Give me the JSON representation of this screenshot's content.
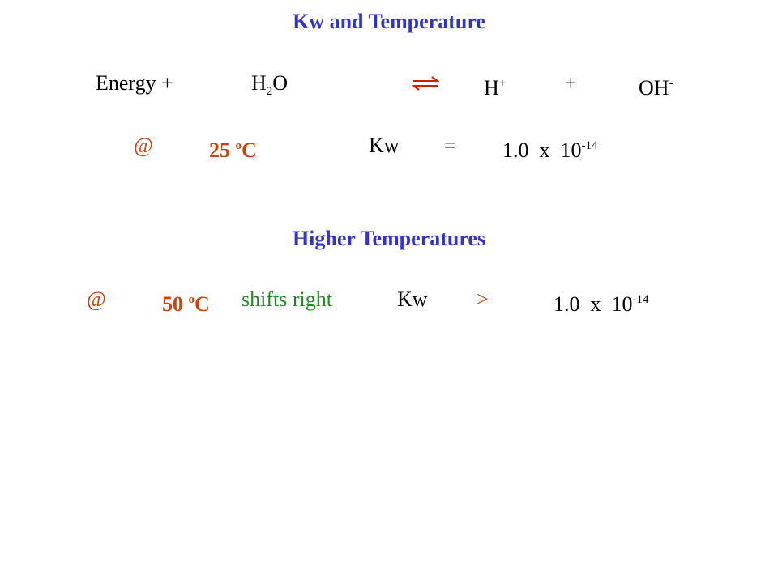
{
  "title": "Kw and Temperature",
  "equation": {
    "energy": "Energy +",
    "reactant": {
      "base": "H",
      "sub": "2",
      "rest": "O"
    },
    "product1": {
      "base": "H",
      "sup": "+"
    },
    "plus": "+",
    "product2": {
      "base": "OH",
      "sup": "-"
    }
  },
  "room_temp": {
    "at": "@",
    "temp": "25",
    "degree": "o",
    "unit": "C",
    "symbol": "Kw",
    "relation": "=",
    "value": "1.0  x  10",
    "exponent": "-14"
  },
  "subtitle": "Higher Temperatures",
  "high_temp": {
    "at": "@",
    "temp": "50",
    "degree": "o",
    "unit": "C",
    "shift": "shifts right",
    "symbol": "Kw",
    "relation": ">",
    "value": "1.0  x  10",
    "exponent": "-14"
  }
}
